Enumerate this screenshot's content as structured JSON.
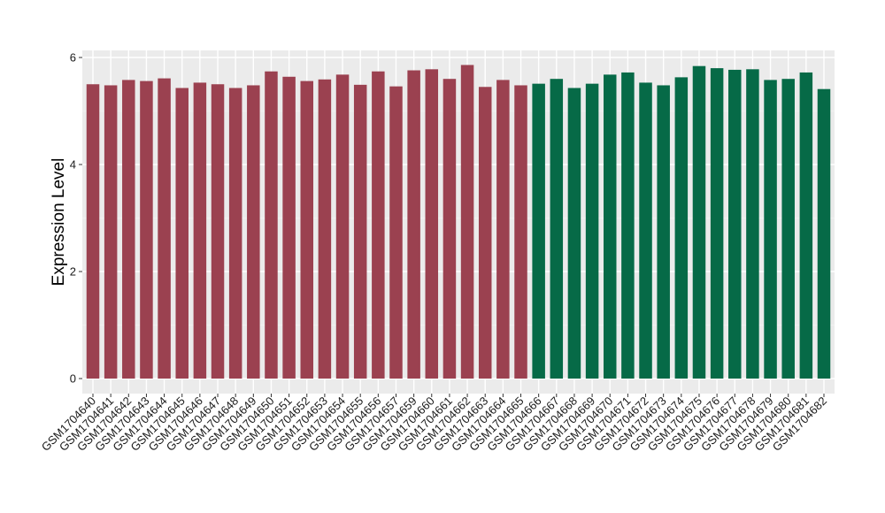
{
  "chart_data": {
    "type": "bar",
    "title": "",
    "xlabel": "",
    "ylabel": "Expression Level",
    "ylim": [
      0,
      6.1
    ],
    "yticks": [
      0,
      2,
      4,
      6
    ],
    "grid": true,
    "panel_background": "#ebebeb",
    "categories": [
      "GSM1704640",
      "GSM1704641",
      "GSM1704642",
      "GSM1704643",
      "GSM1704644",
      "GSM1704645",
      "GSM1704646",
      "GSM1704647",
      "GSM1704648",
      "GSM1704649",
      "GSM1704650",
      "GSM1704651",
      "GSM1704652",
      "GSM1704653",
      "GSM1704654",
      "GSM1704655",
      "GSM1704656",
      "GSM1704657",
      "GSM1704659",
      "GSM1704660",
      "GSM1704661",
      "GSM1704662",
      "GSM1704663",
      "GSM1704664",
      "GSM1704665",
      "GSM1704666",
      "GSM1704667",
      "GSM1704668",
      "GSM1704669",
      "GSM1704670",
      "GSM1704671",
      "GSM1704672",
      "GSM1704673",
      "GSM1704674",
      "GSM1704675",
      "GSM1704676",
      "GSM1704677",
      "GSM1704678",
      "GSM1704679",
      "GSM1704680",
      "GSM1704681",
      "GSM1704682"
    ],
    "values": [
      5.5,
      5.48,
      5.58,
      5.56,
      5.61,
      5.43,
      5.53,
      5.5,
      5.43,
      5.48,
      5.74,
      5.64,
      5.56,
      5.59,
      5.68,
      5.49,
      5.74,
      5.46,
      5.76,
      5.78,
      5.6,
      5.86,
      5.45,
      5.58,
      5.48,
      5.51,
      5.6,
      5.43,
      5.51,
      5.68,
      5.72,
      5.53,
      5.48,
      5.63,
      5.84,
      5.8,
      5.77,
      5.78,
      5.58,
      5.6,
      5.72,
      5.41
    ],
    "group_colors": [
      "#9b4150",
      "#066a47"
    ],
    "groups": [
      0,
      0,
      0,
      0,
      0,
      0,
      0,
      0,
      0,
      0,
      0,
      0,
      0,
      0,
      0,
      0,
      0,
      0,
      0,
      0,
      0,
      0,
      0,
      0,
      0,
      1,
      1,
      1,
      1,
      1,
      1,
      1,
      1,
      1,
      1,
      1,
      1,
      1,
      1,
      1,
      1,
      1
    ]
  }
}
